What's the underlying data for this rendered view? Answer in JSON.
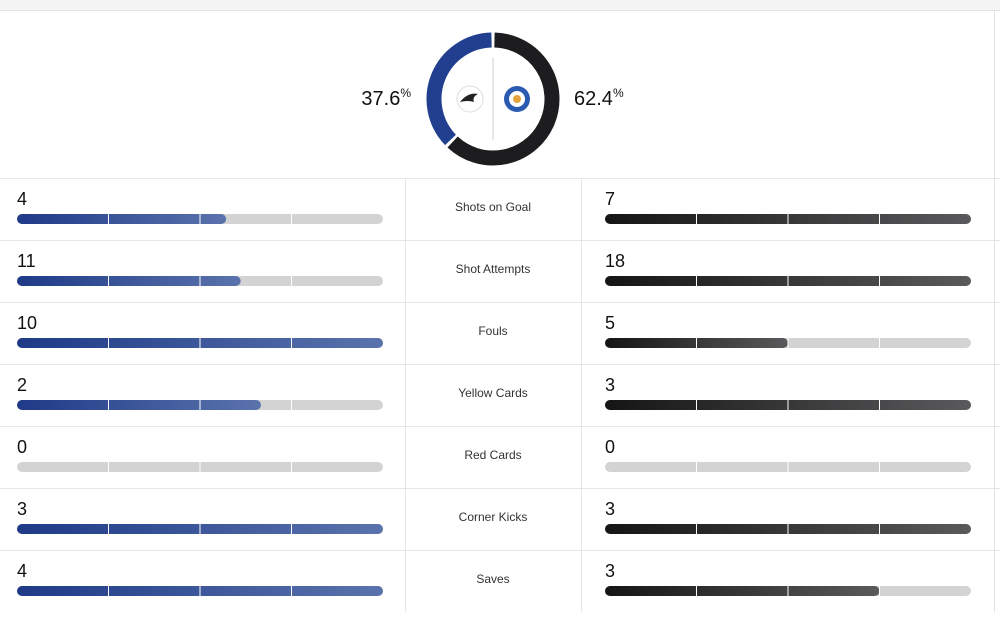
{
  "possession": {
    "home": 37.6,
    "away": 62.4,
    "unit": "%",
    "home_color": "#223f8f",
    "away_color": "#1d1d1f"
  },
  "stats": [
    {
      "label": "Shots on Goal",
      "home": 4,
      "away": 7
    },
    {
      "label": "Shot Attempts",
      "home": 11,
      "away": 18
    },
    {
      "label": "Fouls",
      "home": 10,
      "away": 5
    },
    {
      "label": "Yellow Cards",
      "home": 2,
      "away": 3
    },
    {
      "label": "Red Cards",
      "home": 0,
      "away": 0
    },
    {
      "label": "Corner Kicks",
      "home": 3,
      "away": 3
    },
    {
      "label": "Saves",
      "home": 4,
      "away": 3
    }
  ]
}
